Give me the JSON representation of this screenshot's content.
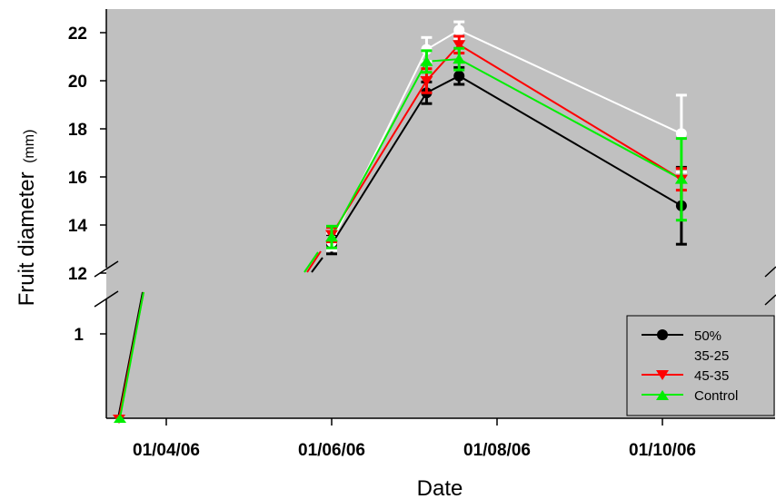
{
  "chart_data": {
    "type": "line",
    "xlabel": "Date",
    "ylabel": "Fruit diameter",
    "ylabel_unit": "(mm)",
    "background": "#c0c0c0",
    "y_upper_ticks": [
      "12",
      "14",
      "16",
      "18",
      "20",
      "22"
    ],
    "y_lower_ticks": [
      "1"
    ],
    "x_ticks": [
      "01/04/06",
      "01/06/06",
      "01/08/06",
      "01/10/06"
    ],
    "y_axis_break": "between 1 and 12",
    "series": [
      {
        "name": "50%",
        "color": "#000000",
        "marker": "circle",
        "x": [
          "2006-06-01",
          "2006-07-06",
          "2006-07-18",
          "2006-10-08"
        ],
        "y": [
          13.2,
          19.5,
          20.2,
          14.8
        ],
        "err": [
          0.4,
          0.45,
          0.35,
          1.6
        ]
      },
      {
        "name": "35-25",
        "color": "#ffffff",
        "marker": "circle",
        "x": [
          "2006-06-01",
          "2006-07-06",
          "2006-07-18",
          "2006-10-08"
        ],
        "y": [
          13.3,
          21.3,
          22.1,
          17.8
        ],
        "err": [
          0.35,
          0.5,
          0.35,
          1.6
        ]
      },
      {
        "name": "45-35",
        "color": "#ff0000",
        "marker": "triangle-down",
        "x": [
          "2006-06-01",
          "2006-07-06",
          "2006-07-18",
          "2006-10-08"
        ],
        "y": [
          13.6,
          20.0,
          21.5,
          15.9
        ],
        "err": [
          0.3,
          0.5,
          0.35,
          0.45
        ]
      },
      {
        "name": "Control",
        "color": "#00ee00",
        "marker": "triangle-up",
        "x": [
          "2006-06-01",
          "2006-07-06",
          "2006-07-18",
          "2006-10-08"
        ],
        "y": [
          13.5,
          20.8,
          20.9,
          15.9
        ],
        "err": [
          0.45,
          0.45,
          0.45,
          1.7
        ]
      }
    ]
  }
}
